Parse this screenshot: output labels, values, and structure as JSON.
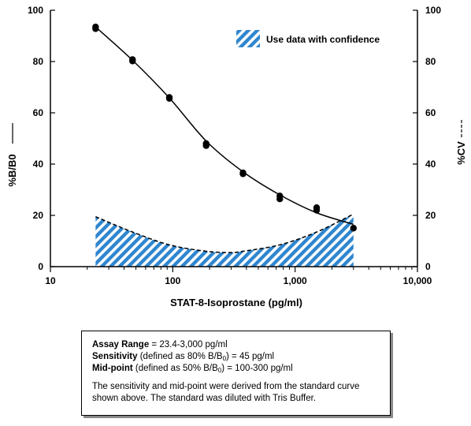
{
  "chart_data": {
    "type": "line",
    "xlabel": "STAT-8-Isoprostane (pg/ml)",
    "ylabel_left": "%B/B0",
    "ylabel_right": "%CV",
    "x_scale": "log",
    "xlim": [
      10,
      10000
    ],
    "ylim_left": [
      0,
      100
    ],
    "ylim_right": [
      0,
      100
    ],
    "x_ticks": [
      10,
      100,
      1000,
      10000
    ],
    "x_tick_labels": [
      "10",
      "100",
      "1,000",
      "10,000"
    ],
    "y_ticks_left": [
      0,
      20,
      40,
      60,
      80,
      100
    ],
    "y_ticks_right": [
      0,
      20,
      40,
      60,
      80,
      100
    ],
    "grid": false,
    "legend_position": "top-right",
    "legend_label": "Use data with confidence",
    "series": [
      {
        "kind": "points",
        "x": [
          23.4,
          23.4,
          46.9,
          46.9,
          93.8,
          93.8,
          187.5,
          187.5,
          375,
          375,
          750,
          750,
          1500,
          1500,
          3000
        ],
        "y": [
          93.5,
          92.8,
          80.8,
          80.2,
          66.0,
          65.6,
          48.0,
          47.2,
          36.6,
          36.2,
          27.6,
          26.4,
          23.0,
          22.0,
          15.0
        ]
      },
      {
        "kind": "fit-curve",
        "x": [
          23.4,
          46.9,
          93.8,
          187.5,
          375,
          750,
          1500,
          3000
        ],
        "y": [
          93.5,
          80.5,
          65.8,
          49.0,
          37.0,
          28.0,
          21.0,
          16.5
        ]
      },
      {
        "kind": "cv-area",
        "x": [
          23.4,
          46.9,
          93.8,
          187.5,
          300,
          375,
          750,
          1500,
          3000
        ],
        "y": [
          19.5,
          13.5,
          8.5,
          6.0,
          5.5,
          6.0,
          8.5,
          13.5,
          20.5
        ]
      }
    ]
  },
  "info_box": {
    "assay_label": "Assay Range",
    "assay_value": " = 23.4-3,000 pg/ml",
    "sensitivity_label": "Sensitivity",
    "sensitivity_pre": " (defined as 80% B/B",
    "sensitivity_sub": "0",
    "sensitivity_post": ") = 45 pg/ml",
    "midpoint_label": "Mid-point",
    "midpoint_pre": " (defined as 50% B/B",
    "midpoint_sub": "0",
    "midpoint_post": ") = 100-300 pg/ml",
    "note_line1": "The sensitivity and mid-point were derived from the standard curve",
    "note_line2": "shown above. The standard was diluted with Tris Buffer."
  },
  "colors": {
    "hatch_blue": "#2f86cf",
    "ink": "#000000"
  }
}
